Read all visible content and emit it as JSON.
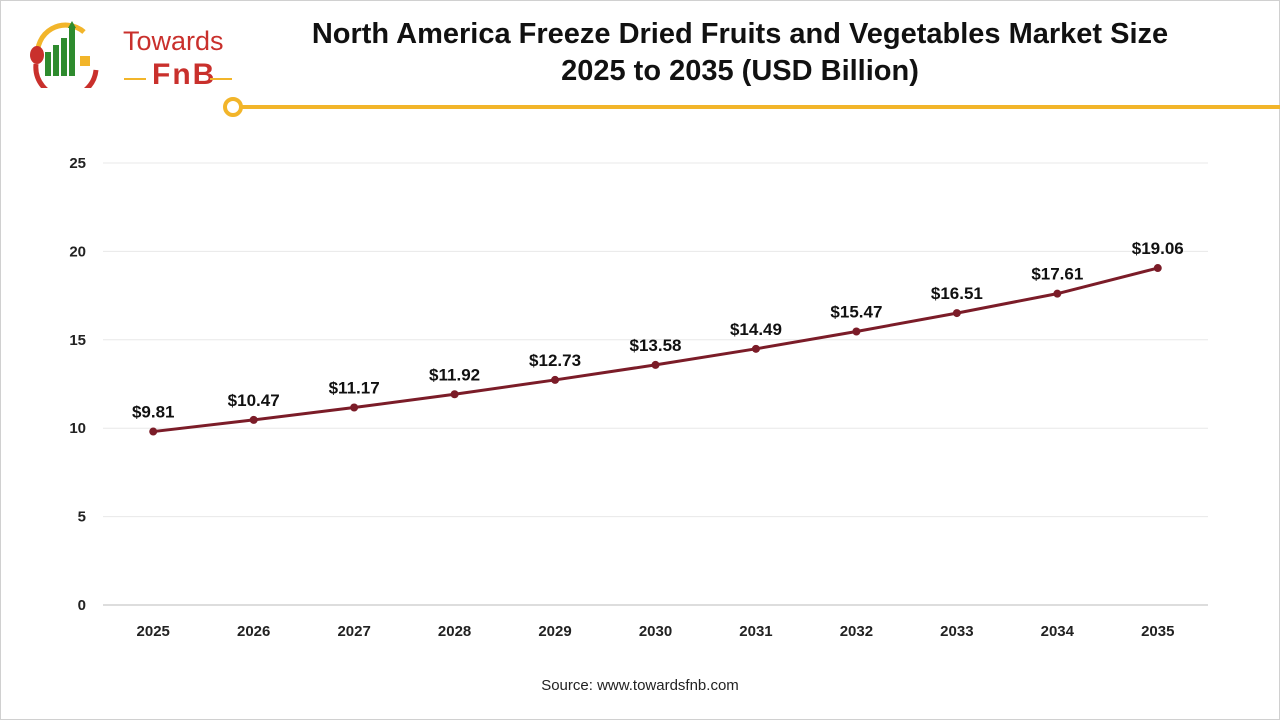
{
  "logo": {
    "line1": "Towards",
    "line2": "FnB"
  },
  "header": {
    "title_line1": "North America Freeze Dried Fruits and Vegetables Market Size",
    "title_line2": "2025 to 2035 (USD Billion)"
  },
  "source": "Source: www.towardsfnb.com",
  "colors": {
    "line": "#7b1c28",
    "accent": "#f2b52a",
    "brand_red": "#c9302c",
    "brand_green": "#2e8b2e"
  },
  "chart_data": {
    "type": "line",
    "categories": [
      "2025",
      "2026",
      "2027",
      "2028",
      "2029",
      "2030",
      "2031",
      "2032",
      "2033",
      "2034",
      "2035"
    ],
    "values": [
      9.81,
      10.47,
      11.17,
      11.92,
      12.73,
      13.58,
      14.49,
      15.47,
      16.51,
      17.61,
      19.06
    ],
    "data_labels": [
      "$9.81",
      "$10.47",
      "$11.17",
      "$11.92",
      "$12.73",
      "$13.58",
      "$14.49",
      "$15.47",
      "$16.51",
      "$17.61",
      "$19.06"
    ],
    "title": "North America Freeze Dried Fruits and Vegetables Market Size 2025 to 2035 (USD Billion)",
    "xlabel": "",
    "ylabel": "",
    "ylim": [
      0,
      25
    ],
    "yticks": [
      0,
      5,
      10,
      15,
      20,
      25
    ],
    "grid": true,
    "legend": "none"
  }
}
